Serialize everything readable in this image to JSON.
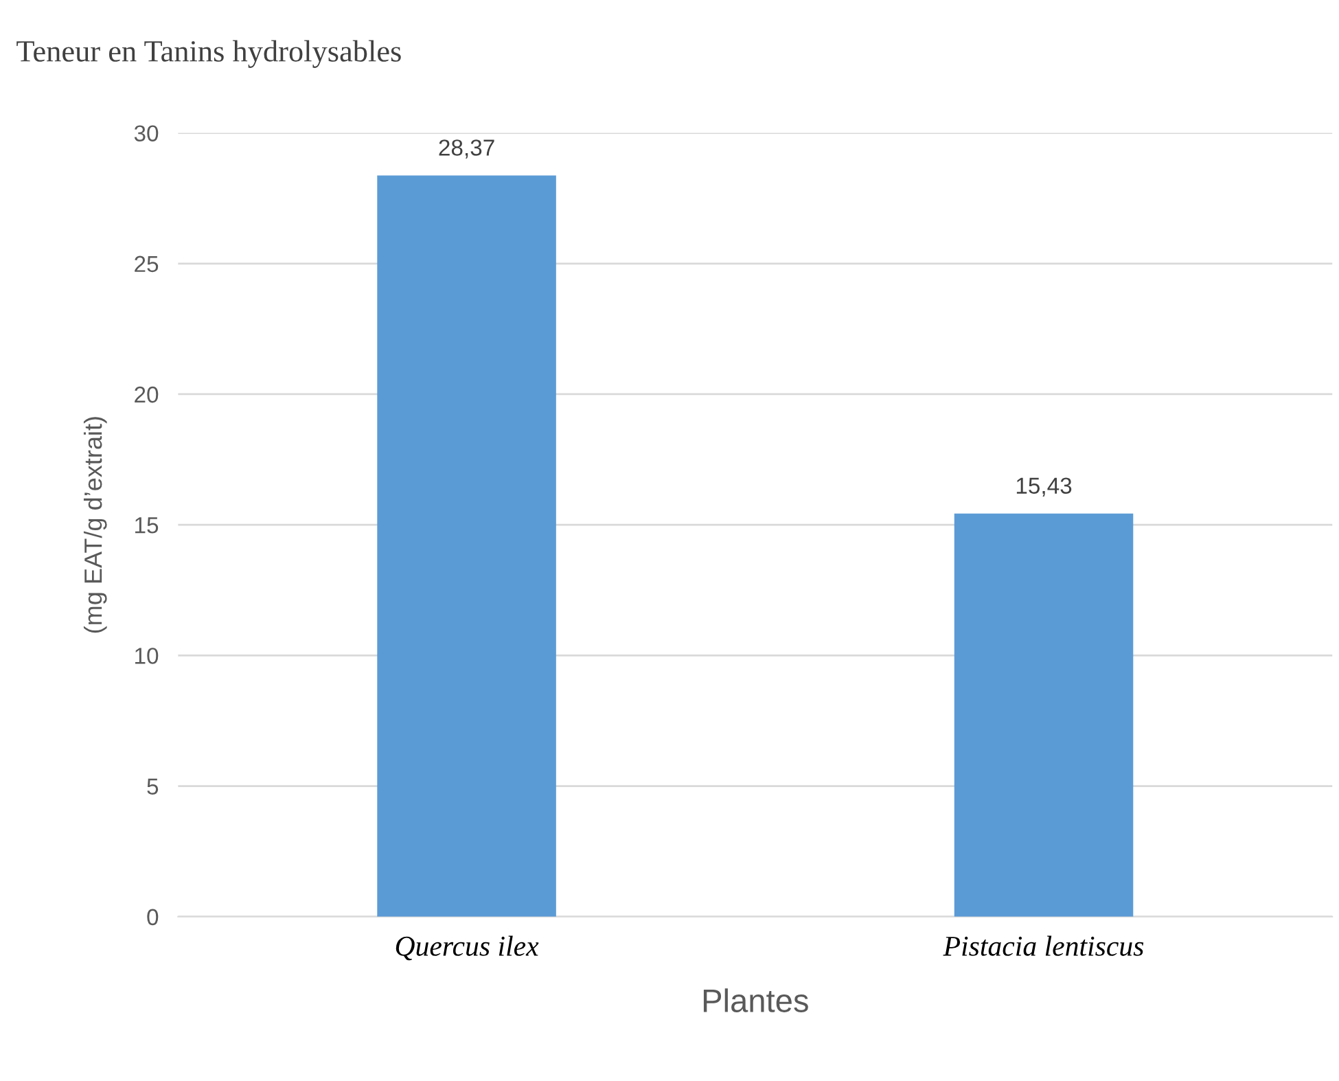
{
  "chart_data": {
    "type": "bar",
    "title": "Teneur en Tanins hydrolysables",
    "xlabel": "Plantes",
    "ylabel": "(mg EAT/g d’extrait)",
    "categories": [
      "Quercus ilex",
      "Pistacia lentiscus"
    ],
    "values": [
      28.37,
      15.43
    ],
    "value_labels": [
      "28,37",
      "15,43"
    ],
    "color": "#5b9bd5",
    "ylim": [
      0,
      30
    ],
    "yticks": [
      0,
      5,
      10,
      15,
      20,
      25,
      30
    ],
    "grid": "y",
    "legend": false
  }
}
